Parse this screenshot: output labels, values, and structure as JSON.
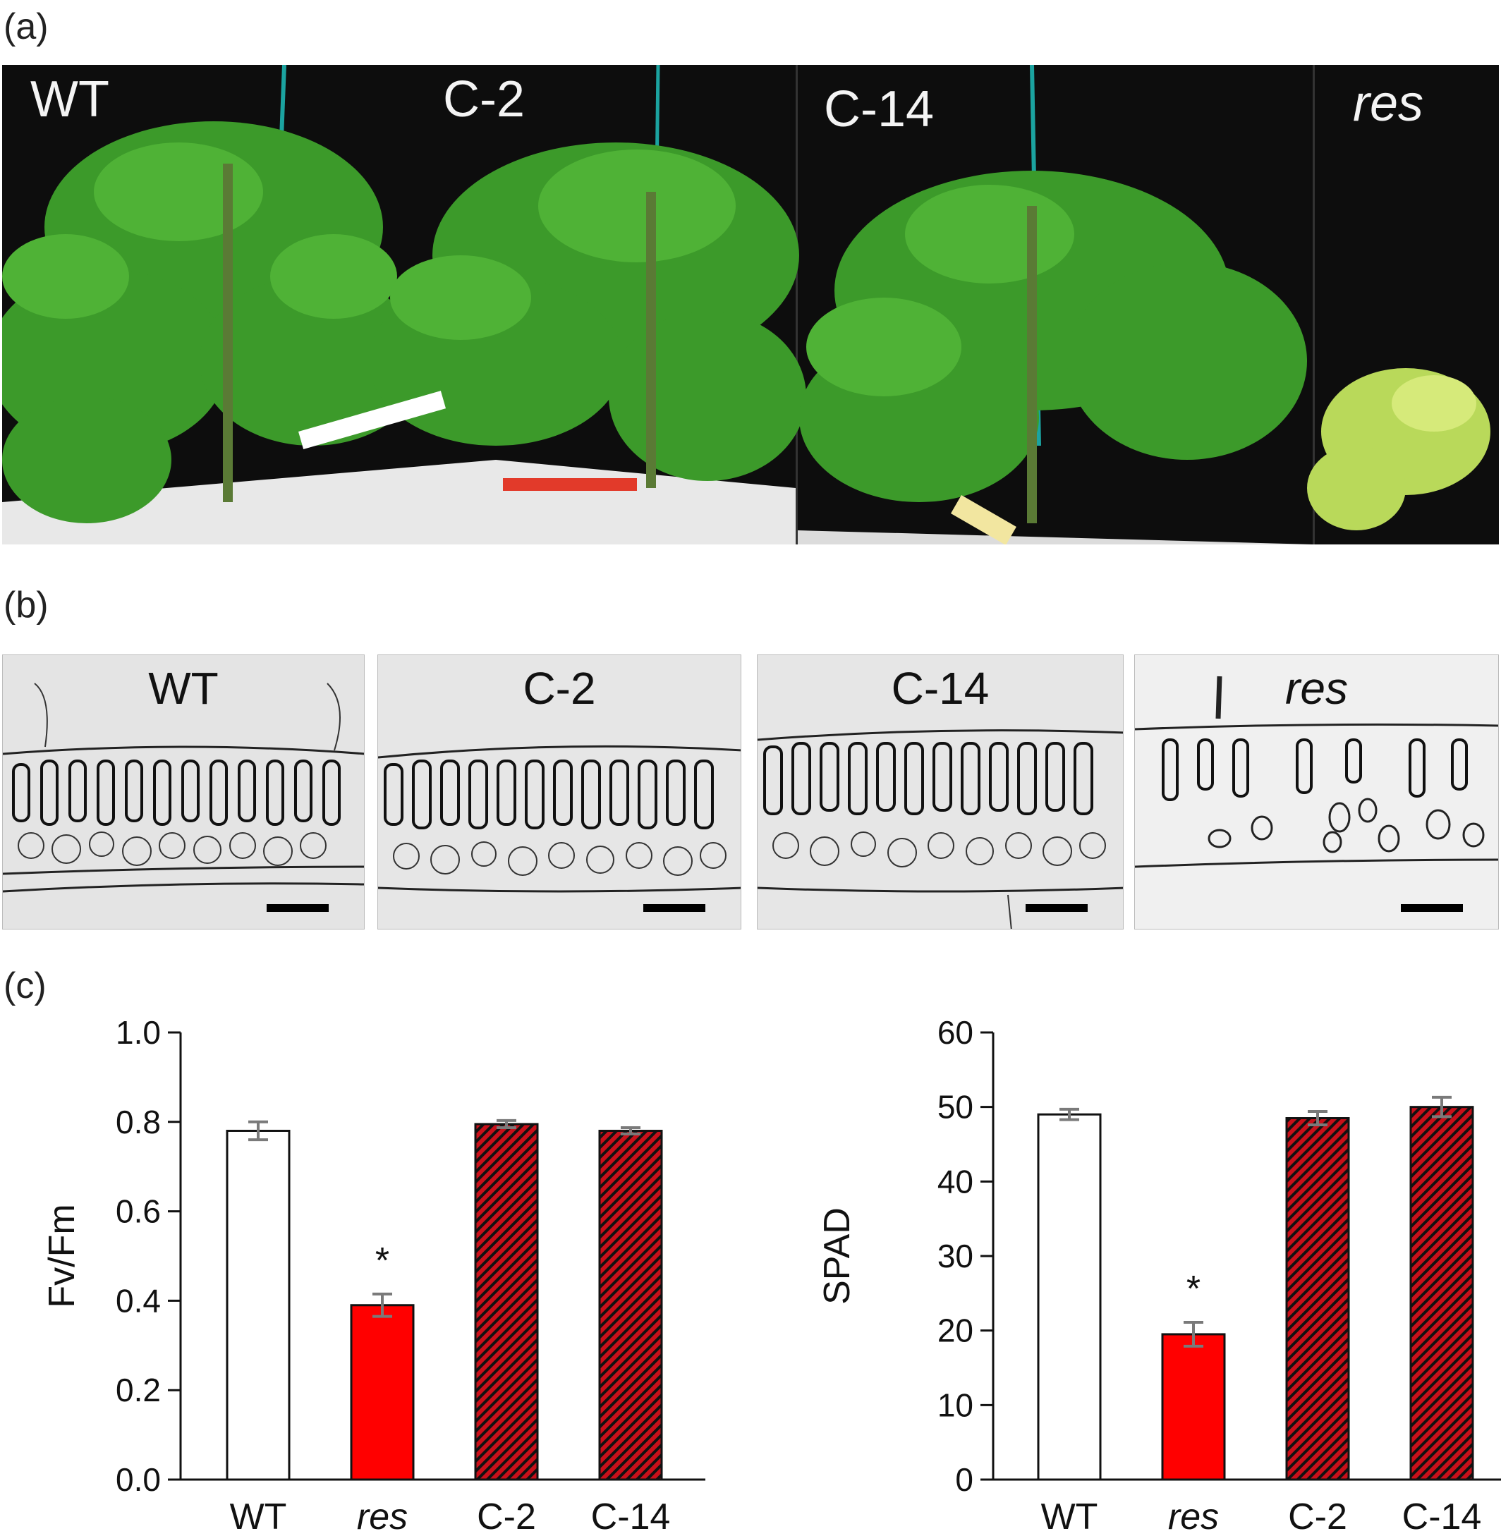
{
  "panels": {
    "a": {
      "label": "(a)",
      "photo_labels": [
        "WT",
        "C-2",
        "C-14",
        "res"
      ]
    },
    "b": {
      "label": "(b)",
      "micro_labels": [
        "WT",
        "C-2",
        "C-14",
        "res"
      ]
    },
    "c": {
      "label": "(c)"
    }
  },
  "colors": {
    "wt_bar": "#ffffff",
    "res_bar": "#ff0000",
    "complemented_bar_hatch": [
      "#c8101a",
      "#111111"
    ],
    "error_bar": "#7a7a7a"
  },
  "chart_data": [
    {
      "type": "bar",
      "categories": [
        "WT",
        "res",
        "C-2",
        "C-14"
      ],
      "values": [
        0.78,
        0.39,
        0.795,
        0.78
      ],
      "errors": [
        0.02,
        0.025,
        0.008,
        0.007
      ],
      "ylabel": "Fv/Fm",
      "ylim": [
        0.0,
        1.0
      ],
      "yticks": [
        "0.0",
        "0.2",
        "0.4",
        "0.6",
        "0.8",
        "1.0"
      ],
      "significance": [
        "",
        "*",
        "",
        ""
      ]
    },
    {
      "type": "bar",
      "categories": [
        "WT",
        "res",
        "C-2",
        "C-14"
      ],
      "values": [
        49,
        19.5,
        48.5,
        50
      ],
      "errors": [
        0.7,
        1.6,
        0.9,
        1.3
      ],
      "ylabel": "SPAD",
      "ylim": [
        0,
        60
      ],
      "yticks": [
        "0",
        "10",
        "20",
        "30",
        "40",
        "50",
        "60"
      ],
      "significance": [
        "",
        "*",
        "",
        ""
      ]
    }
  ]
}
